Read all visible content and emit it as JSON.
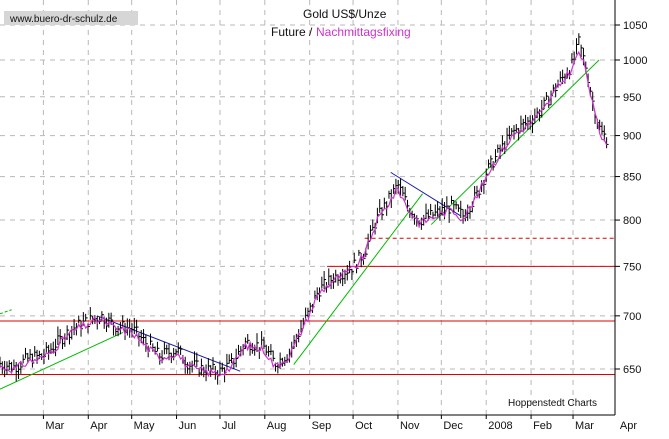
{
  "header": {
    "website": "www.buero-dr-schulz.de",
    "title": "Gold US$/Unze",
    "subtitle_future": "Future /",
    "subtitle_fixing": "Nachmittagsfixing",
    "credit": "Hoppenstedt Charts"
  },
  "colors": {
    "background": "#ffffff",
    "grid": "#b8b8b8",
    "future_bars": "#000000",
    "fixing_line": "#cc33cc",
    "support_lines": "#dd0000",
    "uptrend_lines": "#00bb00",
    "downtrend_lines": "#1a1aaa",
    "website_bg": "#d6d6d6"
  },
  "chart_data": {
    "type": "line",
    "scale": "log",
    "ylim": [
      615,
      1080
    ],
    "y_ticks": [
      650,
      700,
      750,
      800,
      850,
      900,
      950,
      1000,
      1050
    ],
    "x_labels": [
      "Mar",
      "Apr",
      "May",
      "Jun",
      "Jul",
      "Aug",
      "Sep",
      "Oct",
      "Nov",
      "Dec",
      "2008",
      "Feb",
      "Mar",
      "Apr"
    ],
    "x_range_days": [
      -30,
      395
    ],
    "x_label_days": [
      0,
      31,
      61,
      92,
      122,
      153,
      184,
      214,
      245,
      275,
      306,
      337,
      366,
      397
    ],
    "series": [
      {
        "name": "Future",
        "x_days": [
          -30,
          -20,
          -10,
          0,
          10,
          20,
          31,
          40,
          50,
          61,
          70,
          80,
          92,
          100,
          110,
          122,
          130,
          140,
          153,
          160,
          170,
          184,
          190,
          200,
          214,
          222,
          230,
          245,
          252,
          260,
          268,
          275,
          282,
          290,
          300,
          306,
          315,
          325,
          337,
          345,
          355,
          366,
          370,
          375,
          380,
          385,
          390
        ],
        "values": [
          655,
          652,
          660,
          662,
          675,
          688,
          695,
          700,
          690,
          688,
          675,
          662,
          668,
          655,
          650,
          648,
          655,
          675,
          670,
          655,
          665,
          705,
          725,
          738,
          750,
          765,
          800,
          840,
          815,
          800,
          805,
          810,
          815,
          805,
          830,
          855,
          880,
          905,
          920,
          935,
          965,
          995,
          1025,
          990,
          940,
          905,
          895
        ]
      },
      {
        "name": "Nachmittagsfixing",
        "x_days": [
          -30,
          -20,
          -10,
          0,
          10,
          20,
          31,
          40,
          50,
          61,
          70,
          80,
          92,
          100,
          110,
          122,
          130,
          140,
          153,
          160,
          170,
          184,
          190,
          200,
          214,
          222,
          230,
          245,
          252,
          260,
          268,
          275,
          282,
          290,
          300,
          306,
          315,
          325,
          337,
          345,
          355,
          366,
          370,
          375,
          380,
          385,
          390
        ],
        "values": [
          652,
          650,
          657,
          660,
          672,
          685,
          692,
          697,
          687,
          685,
          672,
          660,
          665,
          652,
          648,
          646,
          652,
          672,
          667,
          652,
          662,
          702,
          722,
          735,
          747,
          762,
          797,
          836,
          812,
          797,
          802,
          807,
          812,
          802,
          827,
          851,
          876,
          901,
          916,
          931,
          961,
          990,
          1012,
          985,
          935,
          900,
          892
        ]
      }
    ],
    "horizontal_levels": [
      {
        "value": 645,
        "style": "solid"
      },
      {
        "value": 695,
        "style": "solid"
      },
      {
        "value": 750,
        "style": "solid"
      },
      {
        "value": 780,
        "style": "dashed"
      }
    ],
    "trend_lines": [
      {
        "kind": "uptrend",
        "x_days": [
          -30,
          55
        ],
        "values": [
          632,
          684
        ]
      },
      {
        "kind": "uptrend",
        "x_days": [
          -30,
          -22
        ],
        "values": [
          702,
          706
        ]
      },
      {
        "kind": "uptrend",
        "x_days": [
          173,
          262
        ],
        "values": [
          654,
          830
        ]
      },
      {
        "kind": "uptrend",
        "x_days": [
          268,
          384
        ],
        "values": [
          795,
          1000
        ]
      },
      {
        "kind": "downtrend",
        "x_days": [
          37,
          136
        ],
        "values": [
          700,
          648
        ]
      },
      {
        "kind": "downtrend",
        "x_days": [
          240,
          288
        ],
        "values": [
          855,
          805
        ]
      }
    ],
    "grid": true,
    "legend": "top-center"
  }
}
